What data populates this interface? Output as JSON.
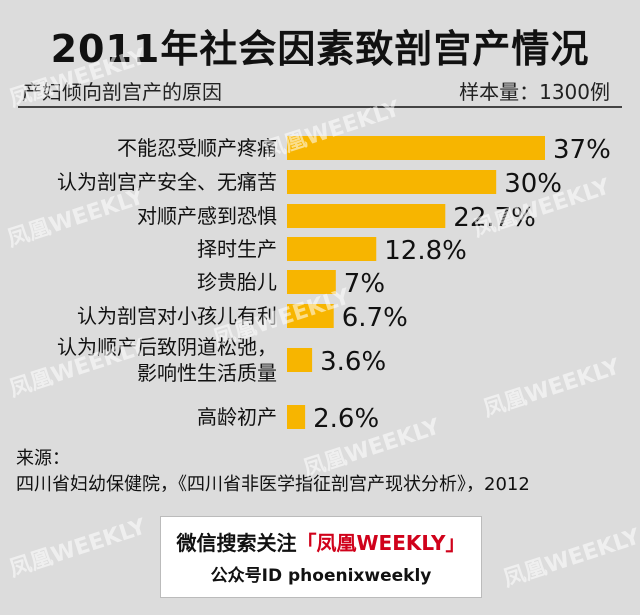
{
  "title": "2011年社会因素致剖宫产情况",
  "subtitle": "产妇倾向剖宫产的原因",
  "sample_size": "样本量：1300例",
  "source": {
    "label": "来源：",
    "text": "四川省妇幼保健院，《四川省非医学指征剖宫产现状分析》，2012"
  },
  "banner": {
    "prefix": "微信搜索关注",
    "open_bracket": "「",
    "brand": "凤凰WEEKLY",
    "close_bracket": "」",
    "account": "公众号ID  phoenixweekly"
  },
  "watermark": "凤凰WEEKLY",
  "colors": {
    "bar": "#f7b500",
    "background": "#dcdcdc",
    "brand": "#d0021b"
  },
  "chart_data": {
    "type": "bar",
    "orientation": "horizontal",
    "categories": [
      [
        "不能忍受顺产疼痛"
      ],
      [
        "认为剖宫产安全、无痛苦"
      ],
      [
        "对顺产感到恐惧"
      ],
      [
        "择时生产"
      ],
      [
        "珍贵胎儿"
      ],
      [
        "认为剖宫对小孩儿有利"
      ],
      [
        "认为顺产后致阴道松弛，",
        "影响性生活质量"
      ],
      [
        "高龄初产"
      ]
    ],
    "values": [
      37,
      30,
      22.7,
      12.8,
      7,
      6.7,
      3.6,
      2.6
    ],
    "value_labels": [
      "37%",
      "30%",
      "22.7%",
      "12.8%",
      "7%",
      "6.7%",
      "3.6%",
      "2.6%"
    ],
    "unit": "%",
    "xlim": [
      0,
      37
    ],
    "grid": false,
    "legend": "none"
  }
}
